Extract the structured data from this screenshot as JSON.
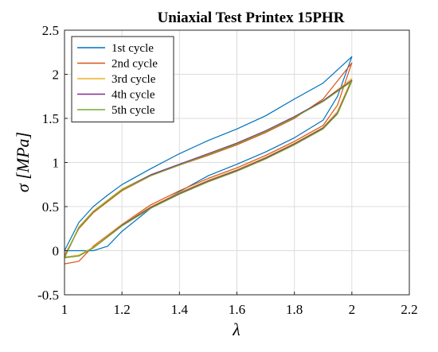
{
  "chart_data": {
    "type": "line",
    "title": "Uniaxial Test Printex 15PHR",
    "xlabel": "λ",
    "ylabel": "σ [MPa]",
    "xlim": [
      1,
      2.2
    ],
    "ylim": [
      -0.5,
      2.5
    ],
    "xticks": [
      1,
      1.2,
      1.4,
      1.6,
      1.8,
      2,
      2.2
    ],
    "yticks": [
      -0.5,
      0,
      0.5,
      1,
      1.5,
      2,
      2.5
    ],
    "xtick_labels": [
      "1",
      "1.2",
      "1.4",
      "1.6",
      "1.8",
      "2",
      "2.2"
    ],
    "ytick_labels": [
      "-0.5",
      "0",
      "0.5",
      "1",
      "1.5",
      "2",
      "2.5"
    ],
    "grid": true,
    "legend_position": "top-left",
    "series": [
      {
        "name": "1st cycle",
        "color": "#0072BD",
        "loading": [
          [
            1.0,
            0.0
          ],
          [
            1.05,
            0.32
          ],
          [
            1.1,
            0.5
          ],
          [
            1.15,
            0.63
          ],
          [
            1.2,
            0.75
          ],
          [
            1.3,
            0.93
          ],
          [
            1.4,
            1.1
          ],
          [
            1.5,
            1.25
          ],
          [
            1.6,
            1.38
          ],
          [
            1.7,
            1.53
          ],
          [
            1.8,
            1.72
          ],
          [
            1.9,
            1.9
          ],
          [
            2.0,
            2.2
          ]
        ],
        "unloading": [
          [
            2.0,
            2.2
          ],
          [
            1.95,
            1.75
          ],
          [
            1.9,
            1.48
          ],
          [
            1.8,
            1.28
          ],
          [
            1.7,
            1.12
          ],
          [
            1.6,
            0.98
          ],
          [
            1.5,
            0.85
          ],
          [
            1.4,
            0.67
          ],
          [
            1.3,
            0.48
          ],
          [
            1.2,
            0.22
          ],
          [
            1.15,
            0.05
          ],
          [
            1.1,
            0.0
          ],
          [
            1.0,
            0.0
          ]
        ]
      },
      {
        "name": "2nd cycle",
        "color": "#D95319",
        "loading": [
          [
            1.0,
            -0.05
          ],
          [
            1.05,
            0.25
          ],
          [
            1.1,
            0.43
          ],
          [
            1.2,
            0.68
          ],
          [
            1.3,
            0.85
          ],
          [
            1.4,
            0.97
          ],
          [
            1.5,
            1.08
          ],
          [
            1.6,
            1.2
          ],
          [
            1.7,
            1.34
          ],
          [
            1.8,
            1.5
          ],
          [
            1.9,
            1.72
          ],
          [
            2.0,
            2.13
          ]
        ],
        "unloading": [
          [
            2.0,
            2.13
          ],
          [
            1.95,
            1.65
          ],
          [
            1.9,
            1.42
          ],
          [
            1.8,
            1.24
          ],
          [
            1.7,
            1.08
          ],
          [
            1.6,
            0.94
          ],
          [
            1.5,
            0.82
          ],
          [
            1.4,
            0.68
          ],
          [
            1.3,
            0.52
          ],
          [
            1.2,
            0.3
          ],
          [
            1.1,
            0.05
          ],
          [
            1.05,
            -0.12
          ],
          [
            1.0,
            -0.15
          ]
        ]
      },
      {
        "name": "3rd cycle",
        "color": "#EDB120",
        "loading": [
          [
            1.0,
            -0.07
          ],
          [
            1.05,
            0.27
          ],
          [
            1.1,
            0.45
          ],
          [
            1.2,
            0.7
          ],
          [
            1.3,
            0.86
          ],
          [
            1.4,
            0.98
          ],
          [
            1.5,
            1.1
          ],
          [
            1.6,
            1.22
          ],
          [
            1.7,
            1.36
          ],
          [
            1.8,
            1.52
          ],
          [
            1.9,
            1.7
          ],
          [
            2.0,
            1.95
          ]
        ],
        "unloading": [
          [
            2.0,
            1.95
          ],
          [
            1.95,
            1.58
          ],
          [
            1.9,
            1.4
          ],
          [
            1.8,
            1.22
          ],
          [
            1.7,
            1.06
          ],
          [
            1.6,
            0.92
          ],
          [
            1.5,
            0.8
          ],
          [
            1.4,
            0.66
          ],
          [
            1.3,
            0.5
          ],
          [
            1.2,
            0.3
          ],
          [
            1.1,
            0.04
          ],
          [
            1.05,
            -0.05
          ],
          [
            1.0,
            -0.07
          ]
        ]
      },
      {
        "name": "4th cycle",
        "color": "#7E2F8E",
        "loading": [
          [
            1.0,
            -0.08
          ],
          [
            1.05,
            0.26
          ],
          [
            1.1,
            0.44
          ],
          [
            1.2,
            0.69
          ],
          [
            1.3,
            0.86
          ],
          [
            1.4,
            0.98
          ],
          [
            1.5,
            1.1
          ],
          [
            1.6,
            1.22
          ],
          [
            1.7,
            1.36
          ],
          [
            1.8,
            1.52
          ],
          [
            1.9,
            1.7
          ],
          [
            2.0,
            1.93
          ]
        ],
        "unloading": [
          [
            2.0,
            1.93
          ],
          [
            1.95,
            1.56
          ],
          [
            1.9,
            1.39
          ],
          [
            1.8,
            1.21
          ],
          [
            1.7,
            1.05
          ],
          [
            1.6,
            0.91
          ],
          [
            1.5,
            0.79
          ],
          [
            1.4,
            0.65
          ],
          [
            1.3,
            0.49
          ],
          [
            1.2,
            0.29
          ],
          [
            1.1,
            0.03
          ],
          [
            1.05,
            -0.06
          ],
          [
            1.0,
            -0.08
          ]
        ]
      },
      {
        "name": "5th cycle",
        "color": "#77AC30",
        "loading": [
          [
            1.0,
            -0.08
          ],
          [
            1.05,
            0.26
          ],
          [
            1.1,
            0.44
          ],
          [
            1.2,
            0.69
          ],
          [
            1.3,
            0.85
          ],
          [
            1.4,
            0.97
          ],
          [
            1.5,
            1.09
          ],
          [
            1.6,
            1.21
          ],
          [
            1.7,
            1.35
          ],
          [
            1.8,
            1.51
          ],
          [
            1.9,
            1.69
          ],
          [
            2.0,
            1.92
          ]
        ],
        "unloading": [
          [
            2.0,
            1.92
          ],
          [
            1.95,
            1.55
          ],
          [
            1.9,
            1.38
          ],
          [
            1.8,
            1.2
          ],
          [
            1.7,
            1.04
          ],
          [
            1.6,
            0.9
          ],
          [
            1.5,
            0.78
          ],
          [
            1.4,
            0.64
          ],
          [
            1.3,
            0.48
          ],
          [
            1.2,
            0.28
          ],
          [
            1.1,
            0.03
          ],
          [
            1.05,
            -0.06
          ],
          [
            1.0,
            -0.08
          ]
        ]
      }
    ]
  }
}
